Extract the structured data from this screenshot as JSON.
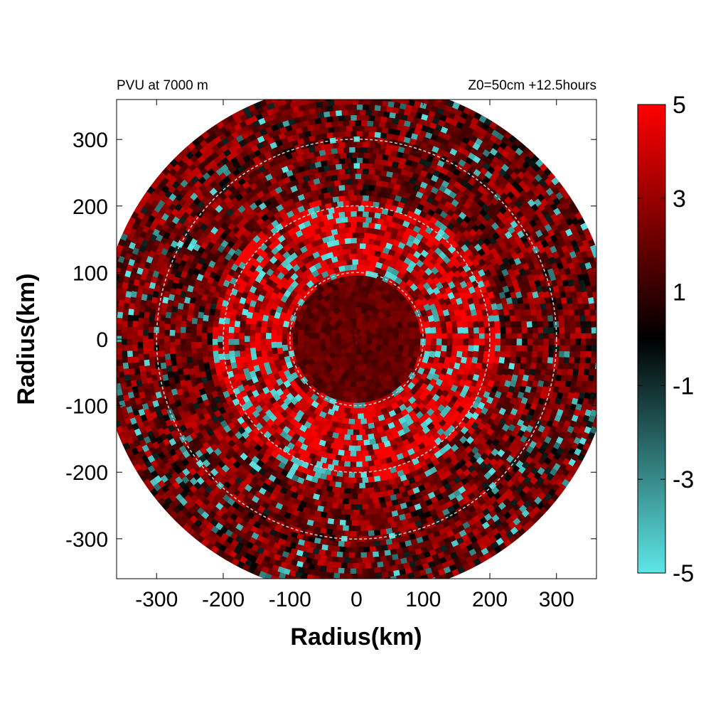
{
  "chart_data": {
    "type": "heatmap",
    "title_left": "PVU at  7000 m",
    "title_right": "Z0=50cm  +12.5hours",
    "xlabel": "Radius(km)",
    "ylabel": "Radius(km)",
    "xlim": [
      -360,
      360
    ],
    "ylim": [
      -360,
      360
    ],
    "x_ticks": [
      "-300",
      "-200",
      "-100",
      "0",
      "100",
      "200",
      "300"
    ],
    "x_tick_values": [
      -300,
      -200,
      -100,
      0,
      100,
      200,
      300
    ],
    "y_ticks": [
      "300",
      "200",
      "100",
      "0",
      "-100",
      "-200",
      "-300"
    ],
    "y_tick_values": [
      300,
      200,
      100,
      0,
      -100,
      -200,
      -300
    ],
    "reference_circles_km": [
      100,
      200,
      300
    ],
    "domain_radius_km": 385,
    "colorbar": {
      "min": -5,
      "max": 5,
      "tick_labels": [
        "5",
        "3",
        "1",
        "-1",
        "-3",
        "-5"
      ],
      "tick_values": [
        5,
        3,
        1,
        -1,
        -3,
        -5
      ],
      "colors": [
        "#5de6e6",
        "#000000",
        "#ff0000"
      ]
    }
  }
}
